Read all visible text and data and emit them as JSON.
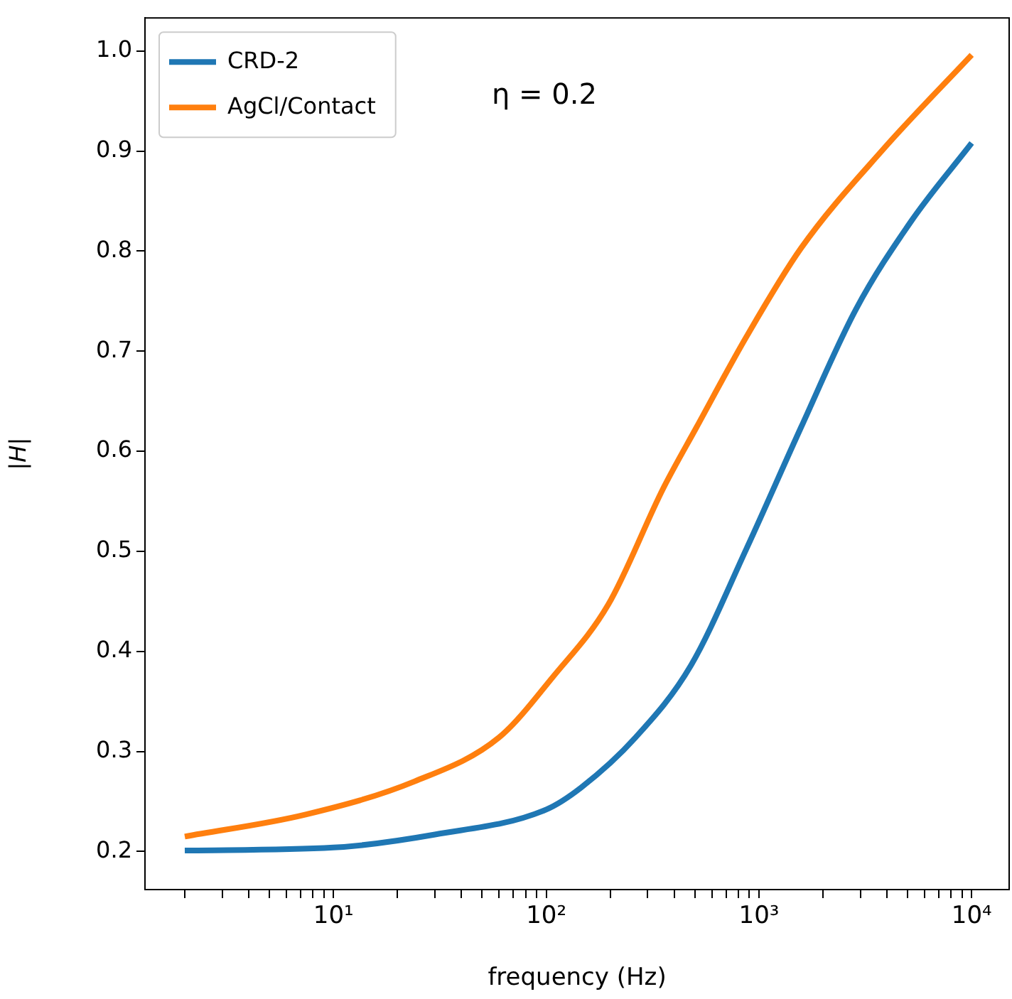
{
  "chart_data": {
    "type": "line",
    "xlabel": "frequency (Hz)",
    "ylabel": "|H|",
    "log": "x",
    "grid": false,
    "legend": "top left",
    "marker": "none",
    "line_style": "solid",
    "annotations": [
      "η = 0.2"
    ],
    "xlim": [
      1.3,
      15000
    ],
    "ylim": [
      0.162,
      1.033
    ],
    "xticks": [
      {
        "value": 2,
        "label": null
      },
      {
        "value": 3,
        "label": null
      },
      {
        "value": 4,
        "label": null
      },
      {
        "value": 5,
        "label": null
      },
      {
        "value": 6,
        "label": null
      },
      {
        "value": 7,
        "label": null
      },
      {
        "value": 8,
        "label": null
      },
      {
        "value": 9,
        "label": null
      },
      {
        "value": 10,
        "label": "10¹"
      },
      {
        "value": 20,
        "label": null
      },
      {
        "value": 30,
        "label": null
      },
      {
        "value": 40,
        "label": null
      },
      {
        "value": 50,
        "label": null
      },
      {
        "value": 60,
        "label": null
      },
      {
        "value": 70,
        "label": null
      },
      {
        "value": 80,
        "label": null
      },
      {
        "value": 90,
        "label": null
      },
      {
        "value": 100,
        "label": "10²"
      },
      {
        "value": 200,
        "label": null
      },
      {
        "value": 300,
        "label": null
      },
      {
        "value": 400,
        "label": null
      },
      {
        "value": 500,
        "label": null
      },
      {
        "value": 600,
        "label": null
      },
      {
        "value": 700,
        "label": null
      },
      {
        "value": 800,
        "label": null
      },
      {
        "value": 900,
        "label": null
      },
      {
        "value": 1000,
        "label": "10³"
      },
      {
        "value": 2000,
        "label": null
      },
      {
        "value": 3000,
        "label": null
      },
      {
        "value": 4000,
        "label": null
      },
      {
        "value": 5000,
        "label": null
      },
      {
        "value": 6000,
        "label": null
      },
      {
        "value": 7000,
        "label": null
      },
      {
        "value": 8000,
        "label": null
      },
      {
        "value": 9000,
        "label": null
      },
      {
        "value": 10000,
        "label": "10⁴"
      }
    ],
    "yticks": [
      0.2,
      0.3,
      0.4,
      0.5,
      0.6,
      0.7,
      0.8,
      0.9,
      {
        "value": 1,
        "label": "1.0"
      }
    ],
    "series": [
      {
        "name": "CRD-2",
        "color": "#1f77b4",
        "x": [
          2,
          10,
          30,
          100,
          146,
          263,
          479,
          871,
          1578,
          2860,
          5200,
          10000
        ],
        "values": [
          0.201,
          0.204,
          0.217,
          0.242,
          0.264,
          0.314,
          0.386,
          0.502,
          0.624,
          0.742,
          0.83,
          0.908
        ]
      },
      {
        "name": "AgCl/Contact",
        "color": "#ff7f0e",
        "x": [
          2,
          7.4,
          24,
          60,
          108,
          196,
          355,
          509,
          871,
          1578,
          3850,
          10000
        ],
        "values": [
          0.215,
          0.237,
          0.27,
          0.314,
          0.375,
          0.447,
          0.563,
          0.624,
          0.714,
          0.803,
          0.902,
          0.996
        ]
      }
    ]
  }
}
